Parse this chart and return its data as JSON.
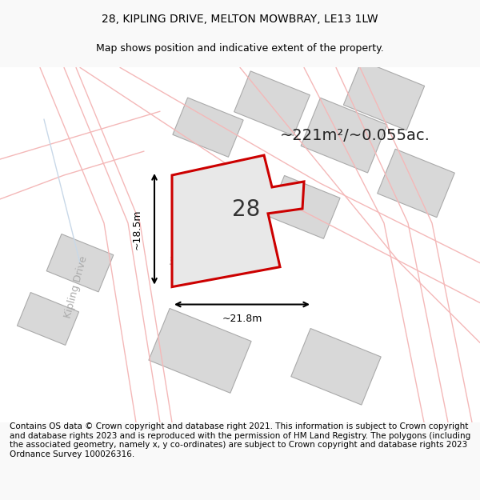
{
  "title": "28, KIPLING DRIVE, MELTON MOWBRAY, LE13 1LW",
  "subtitle": "Map shows position and indicative extent of the property.",
  "footer": "Contains OS data © Crown copyright and database right 2021. This information is subject to Crown copyright and database rights 2023 and is reproduced with the permission of HM Land Registry. The polygons (including the associated geometry, namely x, y co-ordinates) are subject to Crown copyright and database rights 2023 Ordnance Survey 100026316.",
  "area_label": "~221m²/~0.055ac.",
  "width_label": "~21.8m",
  "height_label": "~18.5m",
  "plot_number": "28",
  "road_label_1": "Kipling Drive",
  "road_label_2": "Kipling Drive",
  "bg_color": "#f9f9f9",
  "map_bg": "#ffffff",
  "plot_fill": "#e8e8e8",
  "plot_outline": "#cc0000",
  "road_line_color": "#f4b8b8",
  "road_line_color2": "#c8d8e8",
  "building_fill": "#d8d8d8",
  "title_fontsize": 10,
  "subtitle_fontsize": 9,
  "footer_fontsize": 7.5
}
